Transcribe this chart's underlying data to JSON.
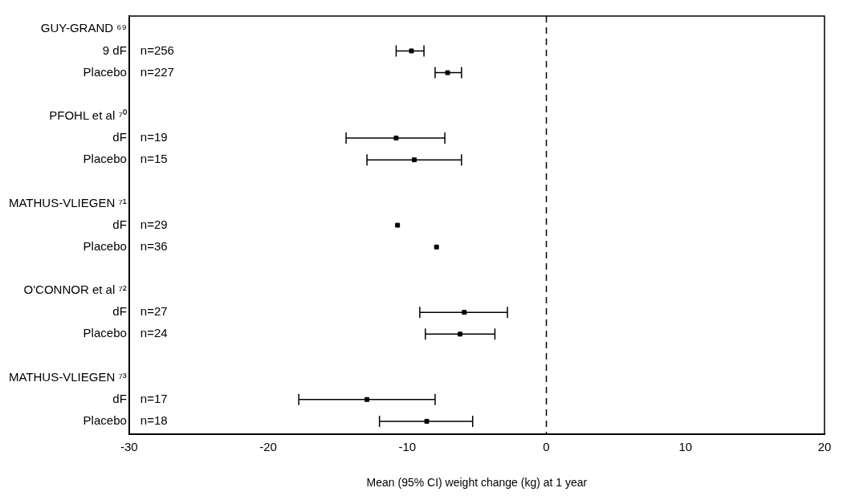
{
  "chart_data": {
    "type": "scatter",
    "orientation": "horizontal",
    "categories": [
      "GUY-GRAND ⁶⁹",
      "9 dF",
      "Placebo",
      null,
      "PFOHL et al ⁷⁰",
      "dF",
      "Placebo",
      null,
      "MATHUS-VLIEGEN ⁷¹",
      "dF",
      "Placebo",
      null,
      "O'CONNOR et al ⁷²",
      "dF",
      "Placebo",
      null,
      "MATHUS-VLIEGEN ⁷³",
      "dF",
      "Placebo"
    ],
    "series": [
      {
        "color": "#000000",
        "values": [
          null,
          -9.7,
          -7.1,
          null,
          null,
          -10.8,
          -9.5,
          null,
          null,
          -10.7,
          -7.9,
          null,
          null,
          -5.9,
          -6.2,
          null,
          null,
          -12.9,
          -8.6
        ],
        "errors": [
          null,
          [
            -10.8,
            -8.8
          ],
          [
            -8.0,
            -6.1
          ],
          null,
          null,
          [
            -14.4,
            -7.3
          ],
          [
            -12.9,
            -6.1
          ],
          null,
          null,
          null,
          null,
          null,
          null,
          [
            -9.1,
            -2.8
          ],
          [
            -8.7,
            -3.7
          ],
          null,
          null,
          [
            -17.8,
            -8.0
          ],
          [
            -12.0,
            -5.3
          ]
        ],
        "name": null
      }
    ],
    "annotations": [
      "n=256",
      "n=227",
      "n=19",
      "n=15",
      "n=29",
      "n=36",
      "n=27",
      "n=24",
      "n=17",
      "n=18"
    ],
    "xlabel": "Mean (95% CI) weight change (kg) at 1 year",
    "xlim": [
      -30,
      20
    ],
    "xticks": [
      -30,
      -20,
      -10,
      0,
      10,
      20
    ],
    "ref_lines": [
      {
        "axis": "x",
        "value": 0,
        "line_style": "dashed",
        "color": "#000000"
      }
    ],
    "marker": "square",
    "grid": false,
    "legend": false
  }
}
